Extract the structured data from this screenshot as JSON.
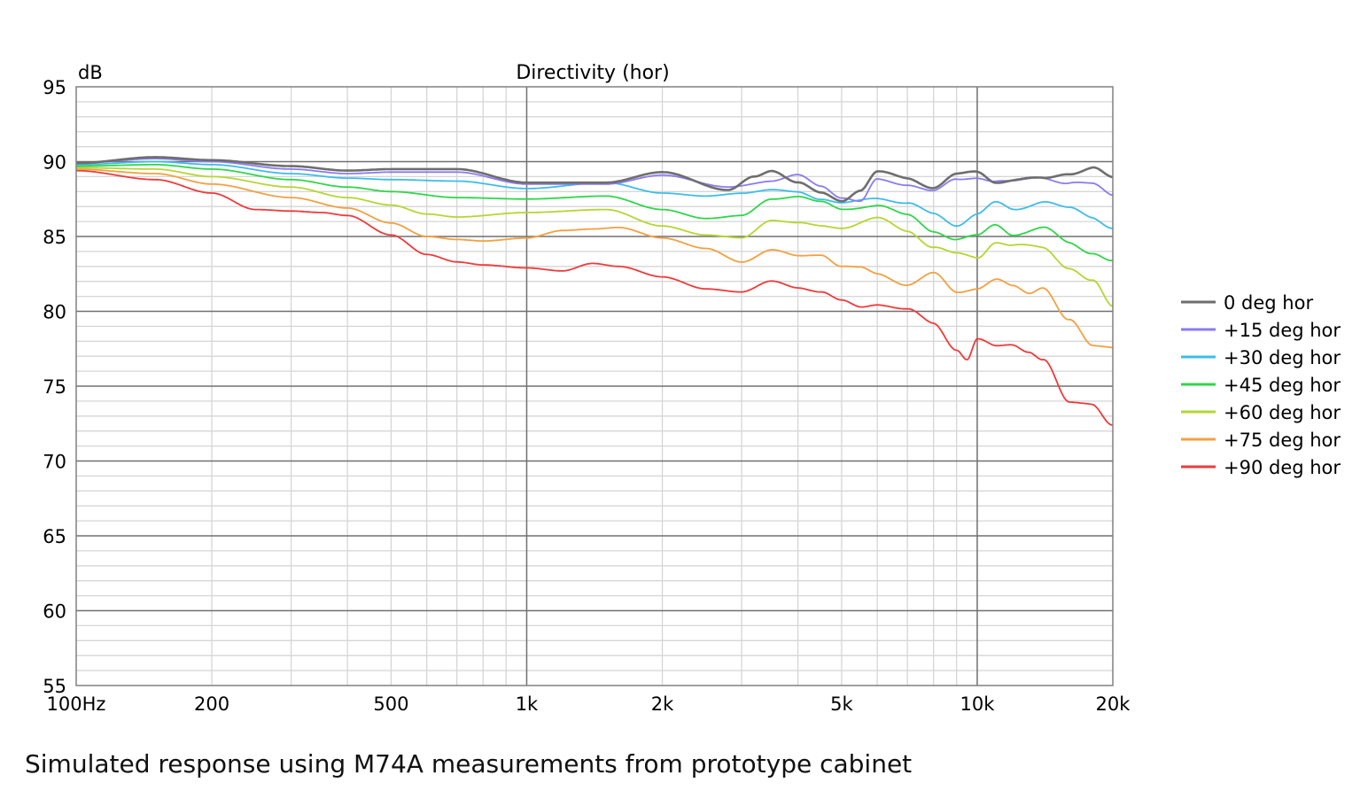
{
  "chart_data": {
    "type": "line",
    "title": "Directivity (hor)",
    "ylabel": "dB",
    "xscale": "log",
    "xlim": [
      100,
      20000
    ],
    "ylim": [
      55,
      95
    ],
    "grid": true,
    "legend_position": "right",
    "x_ticks": [
      {
        "value": 100,
        "label": "100Hz"
      },
      {
        "value": 200,
        "label": "200"
      },
      {
        "value": 500,
        "label": "500"
      },
      {
        "value": 1000,
        "label": "1k"
      },
      {
        "value": 2000,
        "label": "2k"
      },
      {
        "value": 5000,
        "label": "5k"
      },
      {
        "value": 10000,
        "label": "10k"
      },
      {
        "value": 20000,
        "label": "20k"
      }
    ],
    "y_ticks": [
      95,
      90,
      85,
      80,
      75,
      70,
      65,
      60,
      55
    ],
    "series": [
      {
        "name": "0 deg hor",
        "color": "#6e6e6e",
        "x": [
          100,
          150,
          200,
          300,
          400,
          500,
          700,
          1000,
          1500,
          2000,
          2800,
          3200,
          3500,
          4000,
          4500,
          5000,
          5500,
          6000,
          7000,
          8000,
          9000,
          10000,
          11000,
          12000,
          14000,
          16000,
          18000,
          20000
        ],
        "y": [
          89.9,
          90.3,
          90.1,
          89.7,
          89.4,
          89.5,
          89.5,
          88.6,
          88.6,
          89.3,
          88.1,
          89.0,
          89.4,
          88.6,
          87.9,
          87.4,
          88.1,
          89.3,
          88.9,
          88.3,
          89.1,
          89.3,
          88.7,
          88.8,
          88.8,
          89.3,
          89.6,
          88.8
        ]
      },
      {
        "name": "+15 deg hor",
        "color": "#8b7bf0",
        "x": [
          100,
          150,
          200,
          300,
          400,
          500,
          700,
          1000,
          1500,
          2000,
          2800,
          3500,
          4000,
          4500,
          5000,
          5500,
          6000,
          7000,
          8000,
          9000,
          10000,
          11000,
          12000,
          14000,
          16000,
          18000,
          20000
        ],
        "y": [
          89.9,
          90.2,
          90.0,
          89.5,
          89.2,
          89.3,
          89.3,
          88.5,
          88.5,
          89.1,
          88.3,
          88.7,
          89.1,
          88.4,
          87.6,
          87.3,
          88.8,
          88.5,
          88.0,
          88.8,
          89.0,
          88.7,
          88.6,
          89.0,
          88.6,
          88.4,
          87.8
        ]
      },
      {
        "name": "+30 deg hor",
        "color": "#3dbde8",
        "x": [
          100,
          150,
          200,
          300,
          400,
          500,
          700,
          1000,
          1500,
          2000,
          2500,
          3000,
          3500,
          4000,
          4500,
          5000,
          6000,
          7000,
          8000,
          9000,
          10000,
          11000,
          12000,
          14000,
          16000,
          18000,
          20000
        ],
        "y": [
          89.8,
          90.0,
          89.8,
          89.2,
          88.9,
          88.8,
          88.7,
          88.2,
          88.6,
          87.9,
          87.7,
          87.9,
          88.1,
          88.0,
          87.5,
          87.2,
          87.6,
          87.2,
          86.5,
          85.8,
          86.5,
          87.2,
          86.8,
          87.4,
          86.8,
          86.3,
          85.7
        ]
      },
      {
        "name": "+45 deg hor",
        "color": "#2fd64a",
        "x": [
          100,
          150,
          200,
          300,
          400,
          500,
          700,
          1000,
          1500,
          2000,
          2500,
          3000,
          3500,
          4000,
          4500,
          5000,
          6000,
          7000,
          8000,
          9000,
          10000,
          11000,
          12000,
          14000,
          16000,
          18000,
          20000
        ],
        "y": [
          89.7,
          89.8,
          89.5,
          88.8,
          88.3,
          88.0,
          87.6,
          87.5,
          87.7,
          86.8,
          86.2,
          86.4,
          87.5,
          87.7,
          87.3,
          86.8,
          87.1,
          86.4,
          85.4,
          84.8,
          85.0,
          85.8,
          85.2,
          85.5,
          84.6,
          84.0,
          83.3
        ]
      },
      {
        "name": "+60 deg hor",
        "color": "#b5d632",
        "x": [
          100,
          150,
          200,
          300,
          400,
          500,
          600,
          700,
          1000,
          1500,
          2000,
          2500,
          3000,
          3500,
          4000,
          4500,
          5000,
          6000,
          7000,
          8000,
          9000,
          10000,
          11000,
          12000,
          14000,
          16000,
          18000,
          20000
        ],
        "y": [
          89.6,
          89.5,
          89.0,
          88.3,
          87.6,
          87.1,
          86.5,
          86.3,
          86.6,
          86.8,
          85.7,
          85.1,
          84.9,
          86.1,
          85.9,
          85.7,
          85.6,
          86.2,
          85.4,
          84.3,
          83.8,
          83.6,
          84.7,
          84.4,
          84.2,
          83.0,
          82.0,
          80.2
        ]
      },
      {
        "name": "+75 deg hor",
        "color": "#f4a040",
        "x": [
          100,
          150,
          200,
          300,
          400,
          500,
          600,
          700,
          800,
          1000,
          1200,
          1400,
          1600,
          2000,
          2500,
          3000,
          3500,
          4000,
          4500,
          5000,
          5500,
          6000,
          7000,
          8000,
          9000,
          10000,
          11000,
          12000,
          13000,
          14000,
          16000,
          18000,
          20000
        ],
        "y": [
          89.5,
          89.2,
          88.5,
          87.6,
          86.9,
          85.9,
          85.0,
          84.8,
          84.7,
          84.9,
          85.4,
          85.5,
          85.6,
          84.9,
          84.2,
          83.3,
          84.1,
          83.7,
          83.8,
          83.0,
          82.9,
          82.5,
          81.8,
          82.5,
          81.3,
          81.6,
          82.1,
          81.6,
          81.2,
          81.7,
          79.4,
          77.6,
          77.7
        ]
      },
      {
        "name": "+90 deg hor",
        "color": "#f03a3a",
        "x": [
          100,
          150,
          200,
          250,
          300,
          350,
          400,
          500,
          600,
          700,
          800,
          1000,
          1200,
          1400,
          1600,
          2000,
          2500,
          3000,
          3500,
          4000,
          4500,
          5000,
          5500,
          6000,
          7000,
          8000,
          9000,
          9500,
          10000,
          11000,
          12000,
          13000,
          14000,
          16000,
          18000,
          20000
        ],
        "y": [
          89.4,
          88.8,
          87.9,
          86.8,
          86.7,
          86.6,
          86.4,
          85.1,
          83.8,
          83.3,
          83.1,
          82.9,
          82.7,
          83.2,
          83.0,
          82.3,
          81.5,
          81.3,
          82.0,
          81.6,
          81.3,
          80.7,
          80.3,
          80.5,
          80.1,
          79.2,
          77.5,
          76.8,
          78.1,
          77.6,
          77.8,
          77.4,
          76.8,
          73.8,
          73.9,
          72.5
        ]
      }
    ]
  },
  "caption": "Simulated response using M74A measurements from prototype cabinet"
}
